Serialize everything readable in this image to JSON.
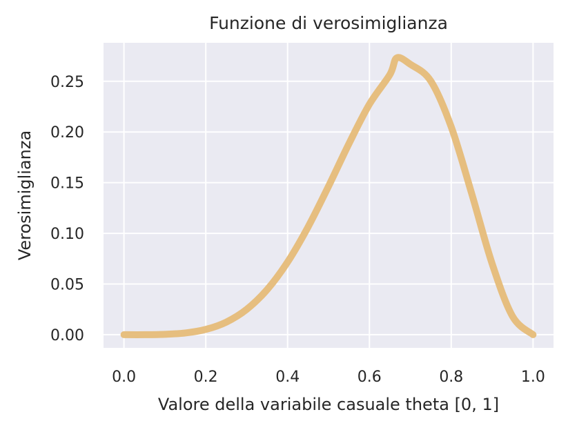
{
  "chart_data": {
    "type": "line",
    "title": "Funzione di verosimiglianza",
    "xlabel": "Valore della variabile casuale theta [0, 1]",
    "ylabel": "Verosimiglianza",
    "xlim": [
      -0.05,
      1.05
    ],
    "ylim": [
      -0.013,
      0.288
    ],
    "xticks": [
      0.0,
      0.2,
      0.4,
      0.6,
      0.8,
      1.0
    ],
    "xtick_labels": [
      "0.0",
      "0.2",
      "0.4",
      "0.6",
      "0.8",
      "1.0"
    ],
    "yticks": [
      0.0,
      0.05,
      0.1,
      0.15,
      0.2,
      0.25
    ],
    "ytick_labels": [
      "0.00",
      "0.05",
      "0.10",
      "0.15",
      "0.20",
      "0.25"
    ],
    "grid": true,
    "colors": {
      "background": "#eaeaf2",
      "grid": "#ffffff",
      "line": "#e6bc78"
    },
    "series": [
      {
        "x": [
          0.0,
          0.05,
          0.1,
          0.15,
          0.2,
          0.25,
          0.3,
          0.35,
          0.4,
          0.45,
          0.5,
          0.55,
          0.6,
          0.65,
          0.667,
          0.7,
          0.75,
          0.8,
          0.85,
          0.9,
          0.95,
          1.0
        ],
        "y": [
          0.0,
          0.0,
          0.0004,
          0.0017,
          0.0052,
          0.0124,
          0.025,
          0.0445,
          0.0717,
          0.1063,
          0.1464,
          0.1885,
          0.2274,
          0.2566,
          0.2731,
          0.2668,
          0.2503,
          0.205,
          0.1392,
          0.07,
          0.018,
          0.0
        ]
      }
    ]
  }
}
